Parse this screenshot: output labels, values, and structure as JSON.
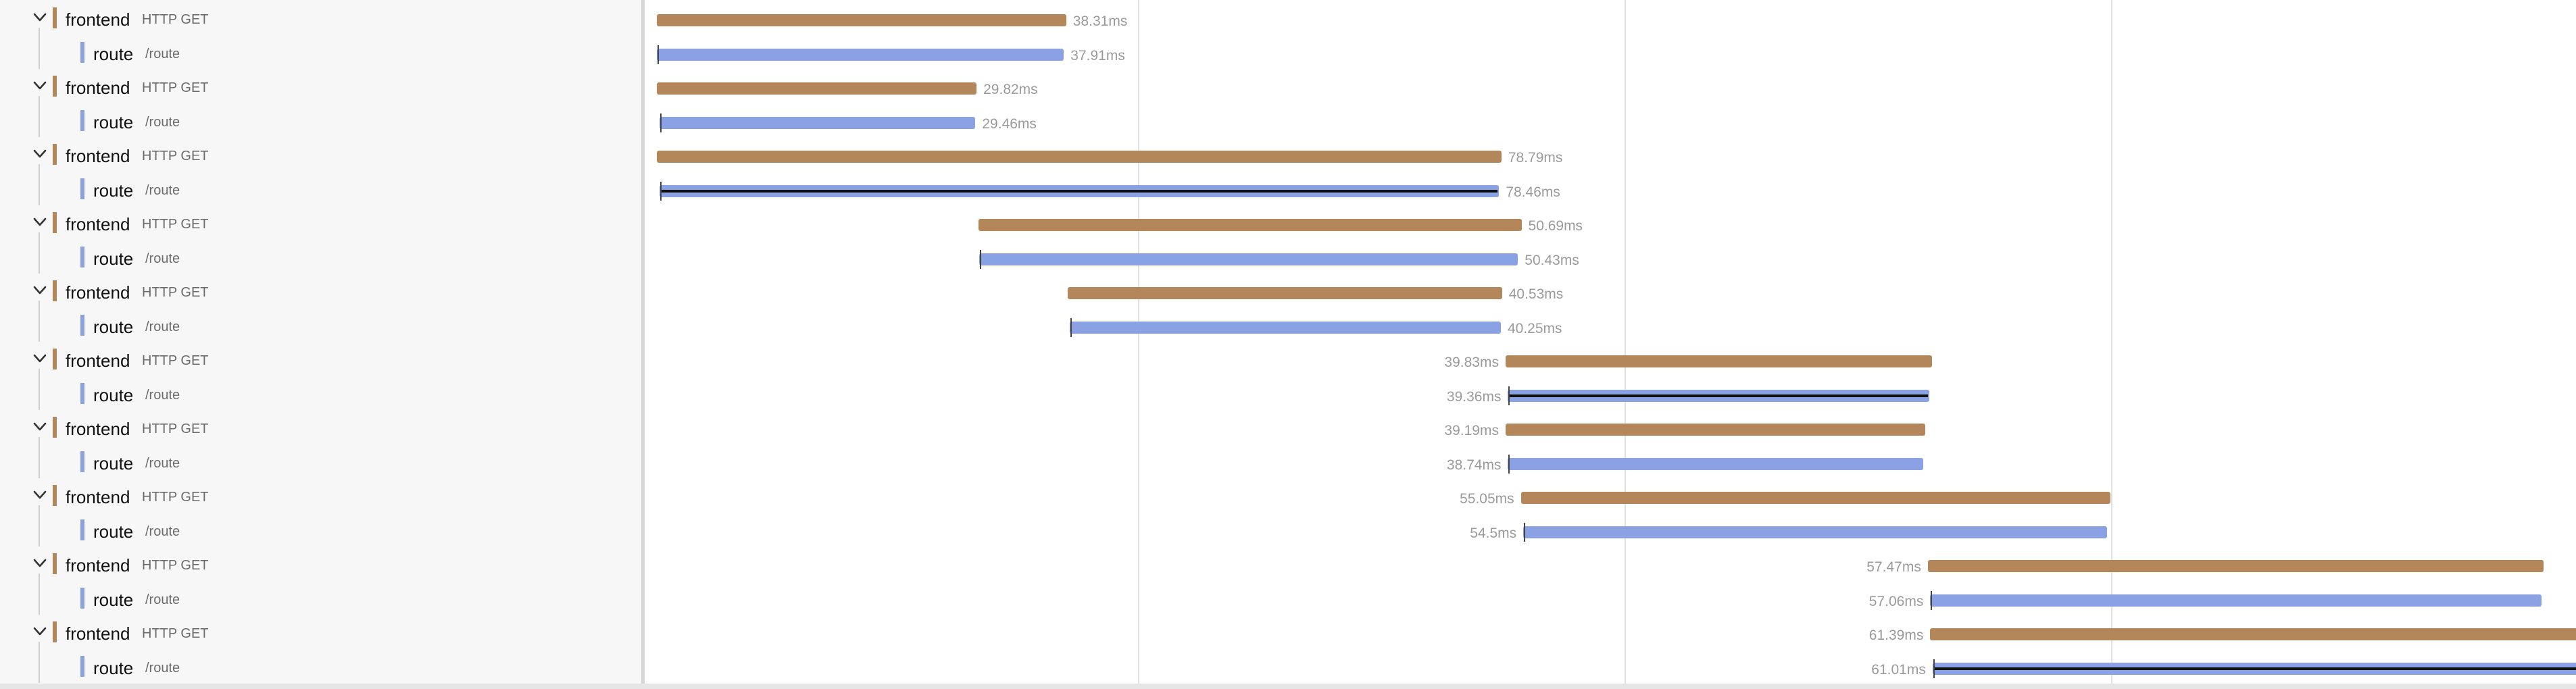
{
  "colors": {
    "frontend": "#b4875a",
    "route": "#8aa2e4",
    "panel_bg": "#f7f7f7",
    "grid": "#e2e2e2",
    "label": "#9a9a9a"
  },
  "timeline": {
    "total_ms": 330,
    "ticks_ms": [
      0,
      82.5,
      165,
      247.5
    ]
  },
  "rows": [
    {
      "service": "frontend",
      "operation": "HTTP GET",
      "level": 0,
      "expanded": true,
      "start_ms": 0.7,
      "duration_ms": 69.4,
      "label": "38.31ms",
      "label_side": "right",
      "log_line": false
    },
    {
      "service": "route",
      "operation": "/route",
      "level": 1,
      "expanded": false,
      "start_ms": 0.7,
      "duration_ms": 69.0,
      "label": "37.91ms",
      "label_side": "right",
      "log_line": false
    },
    {
      "service": "frontend",
      "operation": "HTTP GET",
      "level": 0,
      "expanded": true,
      "start_ms": 0.7,
      "duration_ms": 54.2,
      "label": "29.82ms",
      "label_side": "right",
      "log_line": false
    },
    {
      "service": "route",
      "operation": "/route",
      "level": 1,
      "expanded": false,
      "start_ms": 1.1,
      "duration_ms": 53.6,
      "label": "29.46ms",
      "label_side": "right",
      "log_line": false
    },
    {
      "service": "frontend",
      "operation": "HTTP GET",
      "level": 0,
      "expanded": true,
      "start_ms": 0.7,
      "duration_ms": 143.2,
      "label": "78.79ms",
      "label_side": "right",
      "log_line": false
    },
    {
      "service": "route",
      "operation": "/route",
      "level": 1,
      "expanded": false,
      "start_ms": 1.1,
      "duration_ms": 142.4,
      "label": "78.46ms",
      "label_side": "right",
      "log_line": true
    },
    {
      "service": "frontend",
      "operation": "HTTP GET",
      "level": 0,
      "expanded": true,
      "start_ms": 55.2,
      "duration_ms": 92.1,
      "label": "50.69ms",
      "label_side": "right",
      "log_line": false
    },
    {
      "service": "route",
      "operation": "/route",
      "level": 1,
      "expanded": false,
      "start_ms": 55.4,
      "duration_ms": 91.3,
      "label": "50.43ms",
      "label_side": "right",
      "log_line": false
    },
    {
      "service": "frontend",
      "operation": "HTTP GET",
      "level": 0,
      "expanded": true,
      "start_ms": 70.4,
      "duration_ms": 73.6,
      "label": "40.53ms",
      "label_side": "right",
      "log_line": false
    },
    {
      "service": "route",
      "operation": "/route",
      "level": 1,
      "expanded": false,
      "start_ms": 70.7,
      "duration_ms": 73.1,
      "label": "40.25ms",
      "label_side": "right",
      "log_line": false
    },
    {
      "service": "frontend",
      "operation": "HTTP GET",
      "level": 0,
      "expanded": true,
      "start_ms": 144.6,
      "duration_ms": 72.3,
      "label": "39.83ms",
      "label_side": "left",
      "log_line": false
    },
    {
      "service": "route",
      "operation": "/route",
      "level": 1,
      "expanded": false,
      "start_ms": 145.0,
      "duration_ms": 71.5,
      "label": "39.36ms",
      "label_side": "left",
      "log_line": true
    },
    {
      "service": "frontend",
      "operation": "HTTP GET",
      "level": 0,
      "expanded": true,
      "start_ms": 144.6,
      "duration_ms": 71.2,
      "label": "39.19ms",
      "label_side": "left",
      "log_line": false
    },
    {
      "service": "route",
      "operation": "/route",
      "level": 1,
      "expanded": false,
      "start_ms": 145.0,
      "duration_ms": 70.4,
      "label": "38.74ms",
      "label_side": "left",
      "log_line": false
    },
    {
      "service": "frontend",
      "operation": "HTTP GET",
      "level": 0,
      "expanded": true,
      "start_ms": 147.2,
      "duration_ms": 100.0,
      "label": "55.05ms",
      "label_side": "left",
      "log_line": false
    },
    {
      "service": "route",
      "operation": "/route",
      "level": 1,
      "expanded": false,
      "start_ms": 147.6,
      "duration_ms": 99.0,
      "label": "54.5ms",
      "label_side": "left",
      "log_line": false
    },
    {
      "service": "frontend",
      "operation": "HTTP GET",
      "level": 0,
      "expanded": true,
      "start_ms": 216.2,
      "duration_ms": 104.4,
      "label": "57.47ms",
      "label_side": "left",
      "log_line": false
    },
    {
      "service": "route",
      "operation": "/route",
      "level": 1,
      "expanded": false,
      "start_ms": 216.6,
      "duration_ms": 103.7,
      "label": "57.06ms",
      "label_side": "left",
      "log_line": false
    },
    {
      "service": "frontend",
      "operation": "HTTP GET",
      "level": 0,
      "expanded": true,
      "start_ms": 216.6,
      "duration_ms": 111.5,
      "label": "61.39ms",
      "label_side": "left",
      "log_line": false
    },
    {
      "service": "route",
      "operation": "/route",
      "level": 1,
      "expanded": false,
      "start_ms": 217.0,
      "duration_ms": 110.8,
      "label": "61.01ms",
      "label_side": "left",
      "log_line": true
    }
  ]
}
